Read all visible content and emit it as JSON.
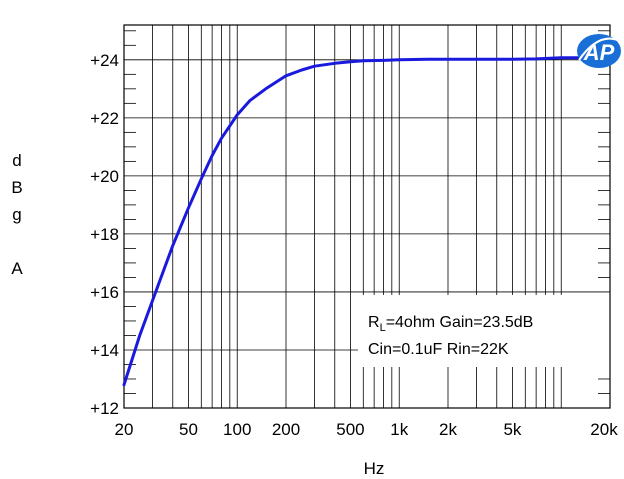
{
  "chart_data": {
    "type": "line",
    "title": "",
    "xlabel": "Hz",
    "ylabel_chars": [
      "d",
      "B",
      "g",
      "",
      "A"
    ],
    "xscale": "log",
    "xlim": [
      20,
      20000
    ],
    "ylim": [
      12,
      25.2
    ],
    "x_ticks": [
      {
        "value": 20,
        "label": "20"
      },
      {
        "value": 50,
        "label": "50"
      },
      {
        "value": 100,
        "label": "100"
      },
      {
        "value": 200,
        "label": "200"
      },
      {
        "value": 500,
        "label": "500"
      },
      {
        "value": 1000,
        "label": "1k"
      },
      {
        "value": 2000,
        "label": "2k"
      },
      {
        "value": 5000,
        "label": "5k"
      },
      {
        "value": 20000,
        "label": "20k"
      }
    ],
    "y_ticks": [
      {
        "value": 12,
        "label": "+12"
      },
      {
        "value": 14,
        "label": "+14"
      },
      {
        "value": 16,
        "label": "+16"
      },
      {
        "value": 18,
        "label": "+18"
      },
      {
        "value": 20,
        "label": "+20"
      },
      {
        "value": 22,
        "label": "+22"
      },
      {
        "value": 24,
        "label": "+24"
      }
    ],
    "grid": true,
    "series": [
      {
        "color": "#1a1adf",
        "x": [
          20,
          25,
          30,
          40,
          50,
          60,
          70,
          80,
          100,
          120,
          150,
          200,
          250,
          300,
          400,
          500,
          600,
          800,
          1000,
          1500,
          2000,
          3000,
          5000,
          7000,
          10000,
          15000,
          20000
        ],
        "y": [
          12.8,
          14.5,
          15.7,
          17.6,
          18.9,
          19.9,
          20.7,
          21.3,
          22.1,
          22.6,
          23.0,
          23.45,
          23.65,
          23.78,
          23.88,
          23.93,
          23.97,
          23.98,
          24.0,
          24.02,
          24.02,
          24.02,
          24.02,
          24.03,
          24.07,
          24.07,
          24.07
        ]
      }
    ],
    "annotations": {
      "line1_main": "R",
      "line1_sub": "L",
      "line1_rest": "=4ohm Gain=23.5dB",
      "line2": "Cin=0.1uF Rin=22K"
    },
    "logo": {
      "text": "AP",
      "color": "#1a6fd6"
    }
  }
}
